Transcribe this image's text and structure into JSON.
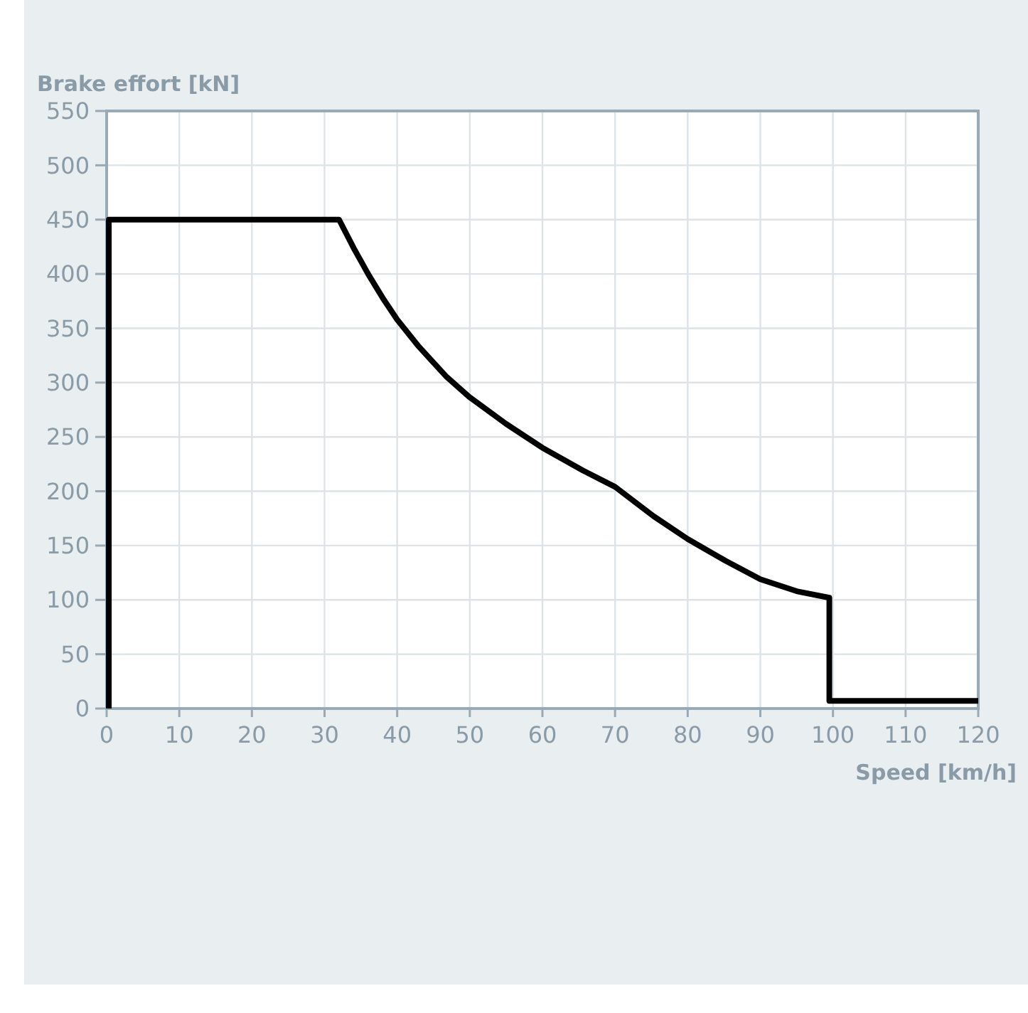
{
  "chart_data": {
    "type": "line",
    "xlabel": "Speed [km/h]",
    "ylabel": "Brake effort [kN]",
    "series": [
      {
        "color": "#000000",
        "x": [
          0.3,
          0.3,
          32,
          34,
          36,
          38,
          40,
          43,
          46.7,
          49.9,
          55,
          60,
          65.6,
          70,
          75.3,
          80,
          85.2,
          90,
          95,
          99.5,
          99.5,
          120
        ],
        "values": [
          0,
          450,
          450,
          424,
          400,
          378,
          358,
          333,
          306,
          287,
          262,
          240,
          219,
          204,
          177,
          156,
          136,
          119,
          108,
          102,
          7,
          7
        ]
      }
    ],
    "xlim": [
      0,
      120
    ],
    "xticks": [
      0,
      10,
      20,
      30,
      40,
      50,
      60,
      70,
      80,
      90,
      100,
      110,
      120
    ],
    "ylim": [
      0,
      550
    ],
    "yticks": [
      0,
      50,
      100,
      150,
      200,
      250,
      300,
      350,
      400,
      450,
      500,
      550
    ],
    "grid": true,
    "marker": "none",
    "line_style": "solid"
  }
}
